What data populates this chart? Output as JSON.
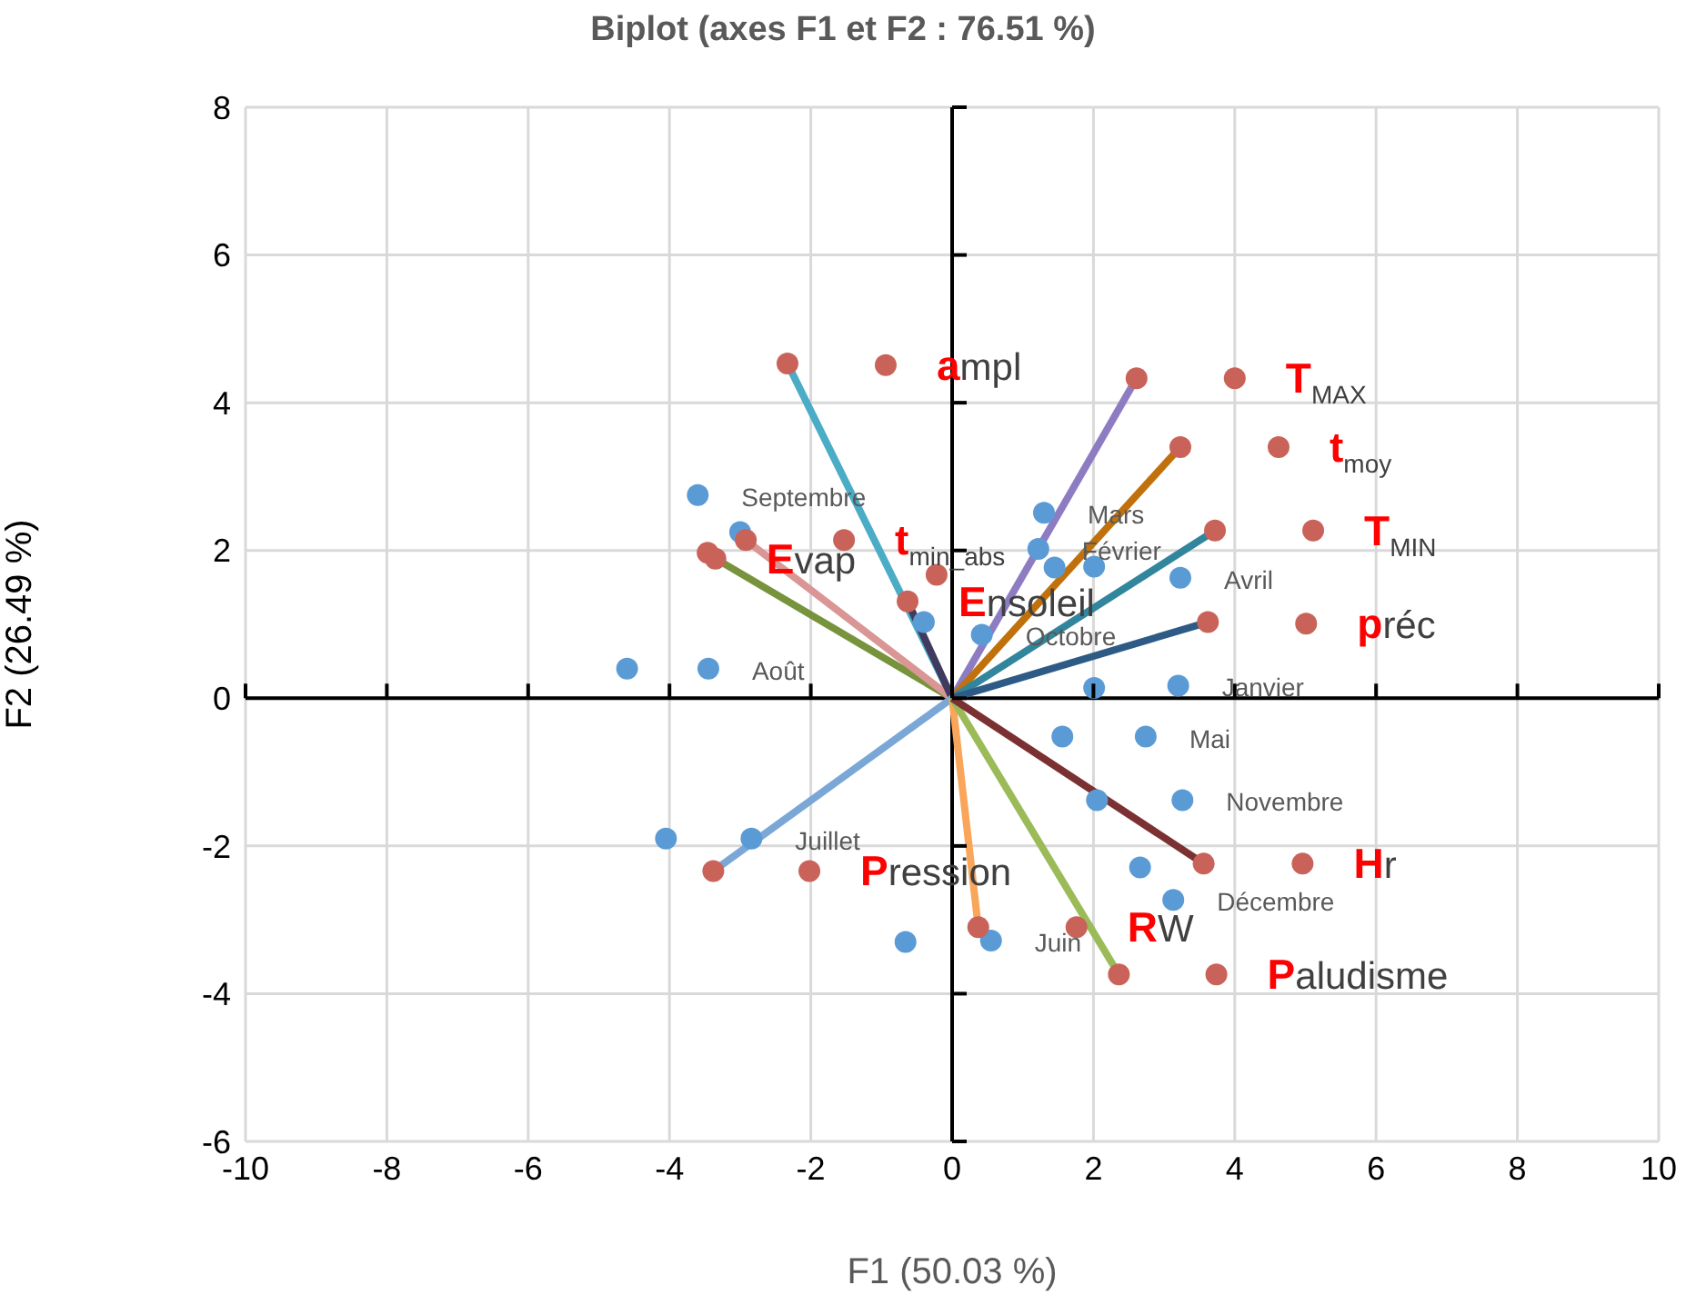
{
  "chart_data": {
    "type": "scatter",
    "title": "Biplot (axes F1 et F2 : 76.51 %)",
    "xlabel": "F1 (50.03 %)",
    "ylabel": "F2 (26.49 %)",
    "xlim": [
      -10,
      10
    ],
    "xticks": [
      -10,
      -8,
      -6,
      -4,
      -2,
      0,
      2,
      4,
      6,
      8,
      10
    ],
    "ylim": [
      -6,
      8
    ],
    "yticks": [
      -6,
      -4,
      -2,
      0,
      2,
      4,
      6,
      8
    ],
    "grid": true,
    "legend": false,
    "series": [
      {
        "type": "line",
        "marker": "none",
        "color": "#4bacc6",
        "x": [
          0,
          -2.33
        ],
        "values": [
          0,
          4.53
        ]
      },
      {
        "type": "line",
        "marker": "none",
        "color": "#8e7cc3",
        "x": [
          0,
          2.61
        ],
        "values": [
          0,
          4.33
        ]
      },
      {
        "type": "line",
        "marker": "none",
        "color": "#c0710c",
        "x": [
          0,
          3.23
        ],
        "values": [
          0,
          3.4
        ]
      },
      {
        "type": "line",
        "marker": "none",
        "color": "#31859c",
        "x": [
          0,
          3.72
        ],
        "values": [
          0,
          2.27
        ]
      },
      {
        "type": "line",
        "marker": "none",
        "color": "#2e5b85",
        "x": [
          0,
          3.62
        ],
        "values": [
          0,
          1.03
        ]
      },
      {
        "type": "line",
        "marker": "none",
        "color": "#77933c",
        "x": [
          0,
          -3.35
        ],
        "values": [
          0,
          1.89
        ]
      },
      {
        "type": "line",
        "marker": "none",
        "color": "#d99694",
        "x": [
          0,
          -2.92
        ],
        "values": [
          0,
          2.14
        ]
      },
      {
        "type": "line",
        "marker": "none",
        "color": "#403a5e",
        "x": [
          0,
          -0.63
        ],
        "values": [
          0,
          1.31
        ]
      },
      {
        "type": "line",
        "marker": "none",
        "color": "#7ba7d7",
        "x": [
          0,
          -3.38
        ],
        "values": [
          0,
          -2.34
        ]
      },
      {
        "type": "line",
        "marker": "none",
        "color": "#f9a65a",
        "x": [
          0,
          0.37
        ],
        "values": [
          0,
          -3.1
        ]
      },
      {
        "type": "line",
        "marker": "none",
        "color": "#9bbb59",
        "x": [
          0,
          2.36
        ],
        "values": [
          0,
          -3.74
        ]
      },
      {
        "type": "line",
        "marker": "none",
        "color": "#7b3131",
        "x": [
          0,
          3.56
        ],
        "values": [
          0,
          -2.24
        ]
      },
      {
        "marker": "circle",
        "color": "#5b9bd5",
        "x": [
          -3.6,
          -3.0,
          -4.6,
          -3.45,
          -0.4,
          0.42,
          1.3,
          1.22,
          1.45,
          2.01,
          3.23,
          2.01,
          3.2,
          1.56,
          2.74,
          2.05,
          3.26,
          2.66,
          3.13,
          0.55,
          -0.66,
          -4.05,
          -2.84
        ],
        "values": [
          2.75,
          2.25,
          0.4,
          0.4,
          1.03,
          0.86,
          2.51,
          2.02,
          1.77,
          1.78,
          1.63,
          0.14,
          0.17,
          -0.52,
          -0.52,
          -1.38,
          -1.38,
          -2.29,
          -2.73,
          -3.28,
          -3.3,
          -1.9,
          -1.9
        ]
      },
      {
        "marker": "circle",
        "color": "#c9635a",
        "x": [
          -2.33,
          -0.94,
          2.61,
          4.0,
          3.23,
          4.62,
          3.72,
          5.11,
          3.62,
          5.01,
          -3.46,
          -3.35,
          -2.92,
          -1.53,
          -0.63,
          -0.22,
          -3.38,
          -2.02,
          0.37,
          1.76,
          2.36,
          3.74,
          3.56,
          4.96
        ],
        "values": [
          4.53,
          4.51,
          4.33,
          4.33,
          3.4,
          3.4,
          2.27,
          2.27,
          1.03,
          1.01,
          1.97,
          1.89,
          2.14,
          2.14,
          1.31,
          1.67,
          -2.34,
          -2.34,
          -3.1,
          -3.1,
          -3.74,
          -3.74,
          -2.24,
          -2.24
        ]
      }
    ],
    "annotations": [
      {
        "text": "Septembre",
        "x": -3.6,
        "y": 2.75
      },
      {
        "text": "Août",
        "x": -3.45,
        "y": 0.4
      },
      {
        "text": "Mars",
        "x": 1.3,
        "y": 2.51
      },
      {
        "text": "Février",
        "x": 1.22,
        "y": 2.02
      },
      {
        "text": "Avril",
        "x": 3.23,
        "y": 1.63
      },
      {
        "text": "Octobre",
        "x": 0.42,
        "y": 0.86
      },
      {
        "text": "Janvier",
        "x": 3.2,
        "y": 0.17
      },
      {
        "text": "Mai",
        "x": 2.74,
        "y": -0.52
      },
      {
        "text": "Novembre",
        "x": 3.26,
        "y": -1.38
      },
      {
        "text": "Décembre",
        "x": 3.13,
        "y": -2.73
      },
      {
        "text": "Juin",
        "x": 0.55,
        "y": -3.28
      },
      {
        "text": "Juillet",
        "x": -2.84,
        "y": -1.9
      },
      {
        "text": "ampl",
        "x": -0.94,
        "y": 4.51
      },
      {
        "text": "T$_{MAX}$",
        "x": 4.0,
        "y": 4.33
      },
      {
        "text": "t$_{moy}$",
        "x": 4.62,
        "y": 3.4
      },
      {
        "text": "T$_{MIN}$",
        "x": 5.11,
        "y": 2.27
      },
      {
        "text": "préc",
        "x": 5.01,
        "y": 1.01
      },
      {
        "text": "Evap",
        "x": -3.35,
        "y": 1.89
      },
      {
        "text": "t$_{min_abs}$",
        "x": -1.53,
        "y": 2.14
      },
      {
        "text": "Ensoleil",
        "x": -0.63,
        "y": 1.31
      },
      {
        "text": "Hr",
        "x": 4.96,
        "y": -2.24
      },
      {
        "text": "Pression",
        "x": -2.02,
        "y": -2.34
      },
      {
        "text": "RW",
        "x": 1.76,
        "y": -3.1
      },
      {
        "text": "Paludisme",
        "x": 3.74,
        "y": -3.74
      }
    ]
  }
}
